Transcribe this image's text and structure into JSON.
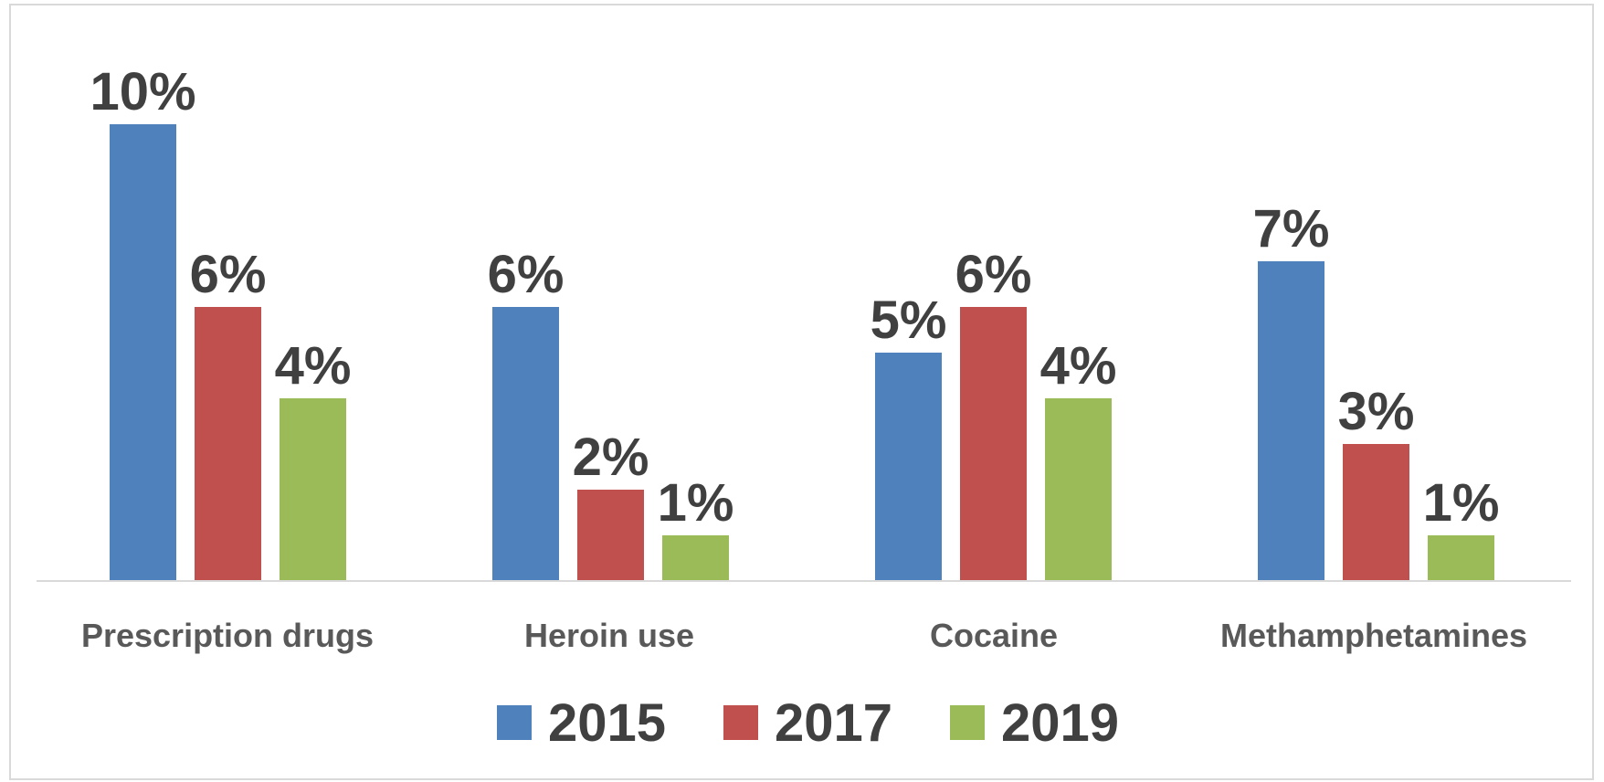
{
  "chart_data": {
    "type": "bar",
    "categories": [
      "Prescription drugs",
      "Heroin use",
      "Cocaine",
      "Methamphetamines"
    ],
    "series": [
      {
        "name": "2015",
        "values": [
          10,
          6,
          5,
          7
        ],
        "labels": [
          "10%",
          "6%",
          "5%",
          "7%"
        ],
        "color": "#4f81bd"
      },
      {
        "name": "2017",
        "values": [
          6,
          2,
          6,
          3
        ],
        "labels": [
          "6%",
          "2%",
          "6%",
          "3%"
        ],
        "color": "#c0504d"
      },
      {
        "name": "2019",
        "values": [
          4,
          1,
          4,
          1
        ],
        "labels": [
          "4%",
          "1%",
          "4%",
          "1%"
        ],
        "color": "#9bbb59"
      }
    ],
    "title": "",
    "xlabel": "",
    "ylabel": "",
    "ylim": [
      0,
      11
    ],
    "grid": false,
    "legend_position": "bottom"
  }
}
